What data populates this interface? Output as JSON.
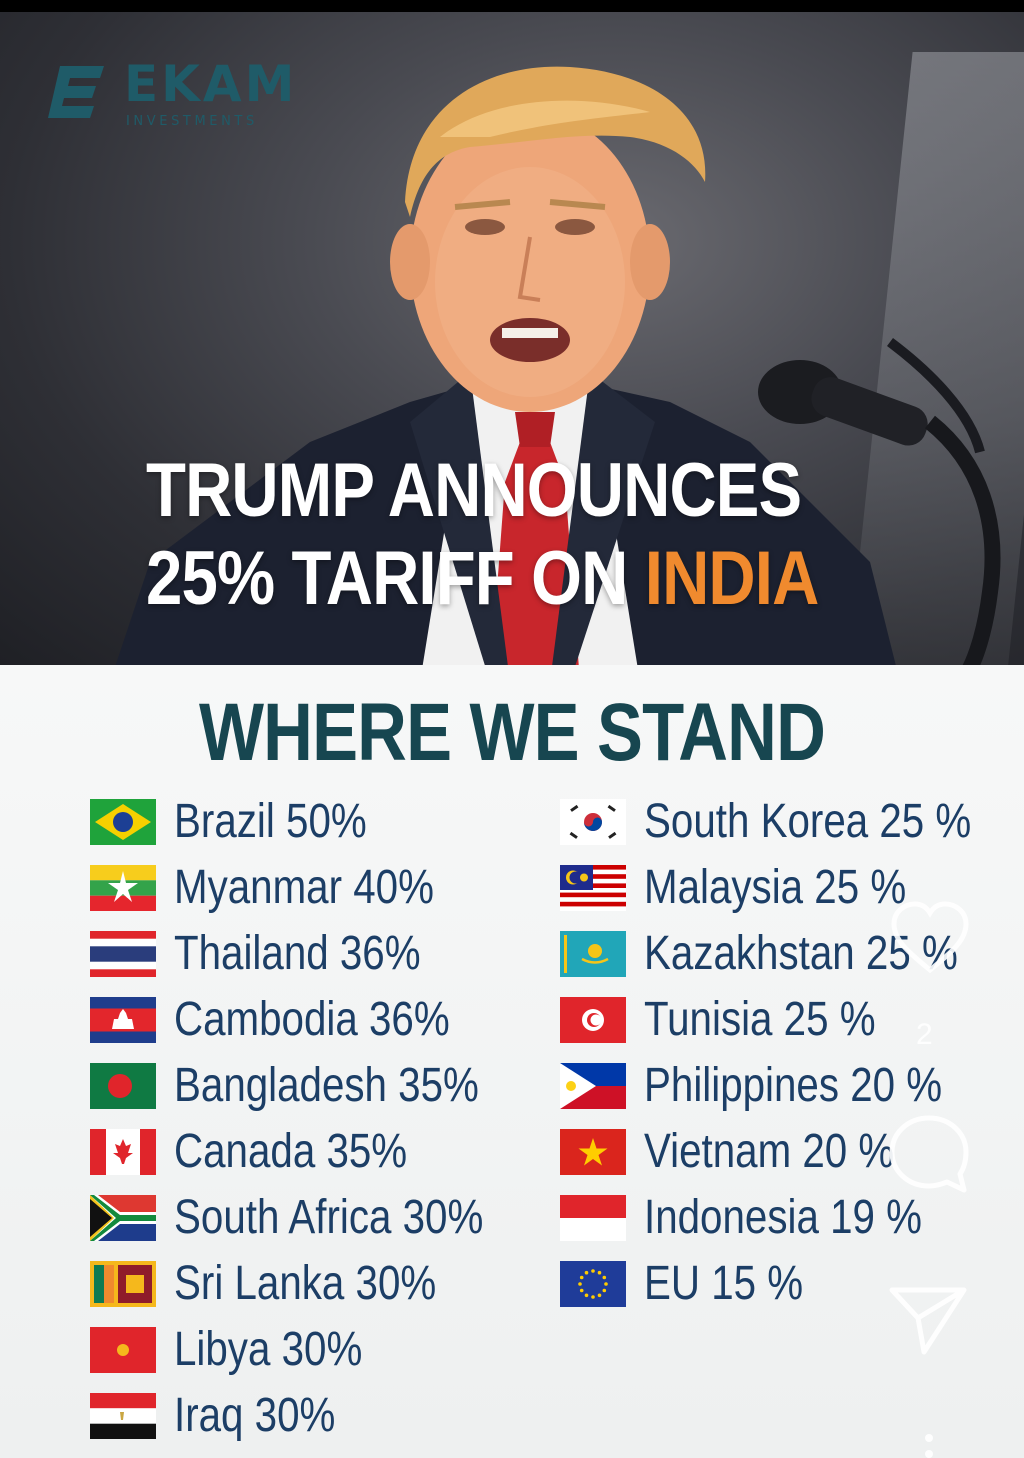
{
  "brand": {
    "name": "EKAM",
    "subtitle": "INVESTMENTS"
  },
  "headline": {
    "line1": "TRUMP ANNOUNCES",
    "line2_prefix": "25% TARIFF ON",
    "line2_accent": "INDIA"
  },
  "colors": {
    "accent": "#f08a2e",
    "brand": "#1f5b68",
    "title": "#174650",
    "country_text": "#1c3e66"
  },
  "section_title": "WHERE WE STAND",
  "left_list": [
    {
      "label": "Brazil 50%",
      "flag": "brazil-flag-icon"
    },
    {
      "label": "Myanmar 40%",
      "flag": "myanmar-flag-icon"
    },
    {
      "label": "Thailand 36%",
      "flag": "thailand-flag-icon"
    },
    {
      "label": "Cambodia 36%",
      "flag": "cambodia-flag-icon"
    },
    {
      "label": "Bangladesh 35%",
      "flag": "bangladesh-flag-icon"
    },
    {
      "label": "Canada 35%",
      "flag": "canada-flag-icon"
    },
    {
      "label": "South Africa 30%",
      "flag": "south-africa-flag-icon"
    },
    {
      "label": "Sri Lanka 30%",
      "flag": "sri-lanka-flag-icon"
    },
    {
      "label": "Libya 30%",
      "flag": "libya-flag-icon"
    },
    {
      "label": "Iraq 30%",
      "flag": "iraq-flag-icon"
    }
  ],
  "right_list": [
    {
      "label": "South Korea 25 %",
      "flag": "south-korea-flag-icon"
    },
    {
      "label": "Malaysia 25 %",
      "flag": "malaysia-flag-icon"
    },
    {
      "label": "Kazakhstan 25 %",
      "flag": "kazakhstan-flag-icon"
    },
    {
      "label": "Tunisia 25 %",
      "flag": "tunisia-flag-icon"
    },
    {
      "label": "Philippines 20 %",
      "flag": "philippines-flag-icon"
    },
    {
      "label": "Vietnam 20 %",
      "flag": "vietnam-flag-icon"
    },
    {
      "label": "Indonesia 19 %",
      "flag": "indonesia-flag-icon"
    },
    {
      "label": "EU 15 %",
      "flag": "eu-flag-icon"
    }
  ],
  "overlay": {
    "like_count": "2"
  }
}
